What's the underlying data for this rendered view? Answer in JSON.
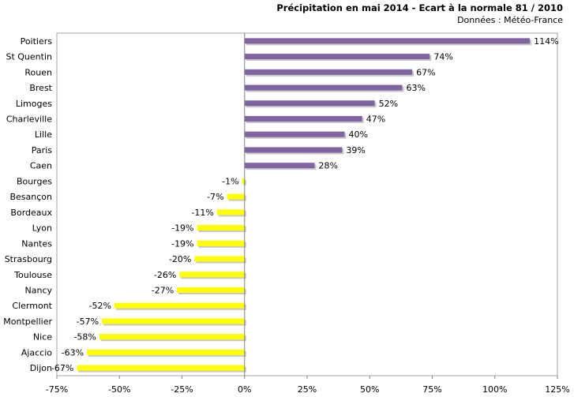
{
  "chart_data": {
    "type": "bar",
    "orientation": "horizontal",
    "title": "Précipitation en mai 2014 - Ecart à la normale 81 / 2010",
    "subtitle": "Données : Météo-France",
    "categories": [
      "Poitiers",
      "St Quentin",
      "Rouen",
      "Brest",
      "Limoges",
      "Charleville",
      "Lille",
      "Paris",
      "Caen",
      "Bourges",
      "Besançon",
      "Bordeaux",
      "Lyon",
      "Nantes",
      "Strasbourg",
      "Toulouse",
      "Nancy",
      "Clermont",
      "Montpellier",
      "Nice",
      "Ajaccio",
      "Dijon"
    ],
    "values": [
      114,
      74,
      67,
      63,
      52,
      47,
      40,
      39,
      28,
      -1,
      -7,
      -11,
      -19,
      -19,
      -20,
      -26,
      -27,
      -52,
      -57,
      -58,
      -63,
      -67
    ],
    "value_labels": [
      "114%",
      "74%",
      "67%",
      "63%",
      "52%",
      "47%",
      "40%",
      "39%",
      "28%",
      "-1%",
      "-7%",
      "-11%",
      "-19%",
      "-19%",
      "-20%",
      "-26%",
      "-27%",
      "-52%",
      "-57%",
      "-58%",
      "-63%",
      "-67%"
    ],
    "xlim": [
      -75,
      125
    ],
    "xticks": [
      -75,
      -50,
      -25,
      0,
      25,
      50,
      75,
      100,
      125
    ],
    "xtick_labels": [
      "-75%",
      "-50%",
      "-25%",
      "0%",
      "25%",
      "50%",
      "75%",
      "100%",
      "125%"
    ],
    "colors": {
      "positive": "#8064a2",
      "negative": "#ffff00",
      "border": "#a6a6a6"
    },
    "grid": false,
    "legend": "none"
  }
}
